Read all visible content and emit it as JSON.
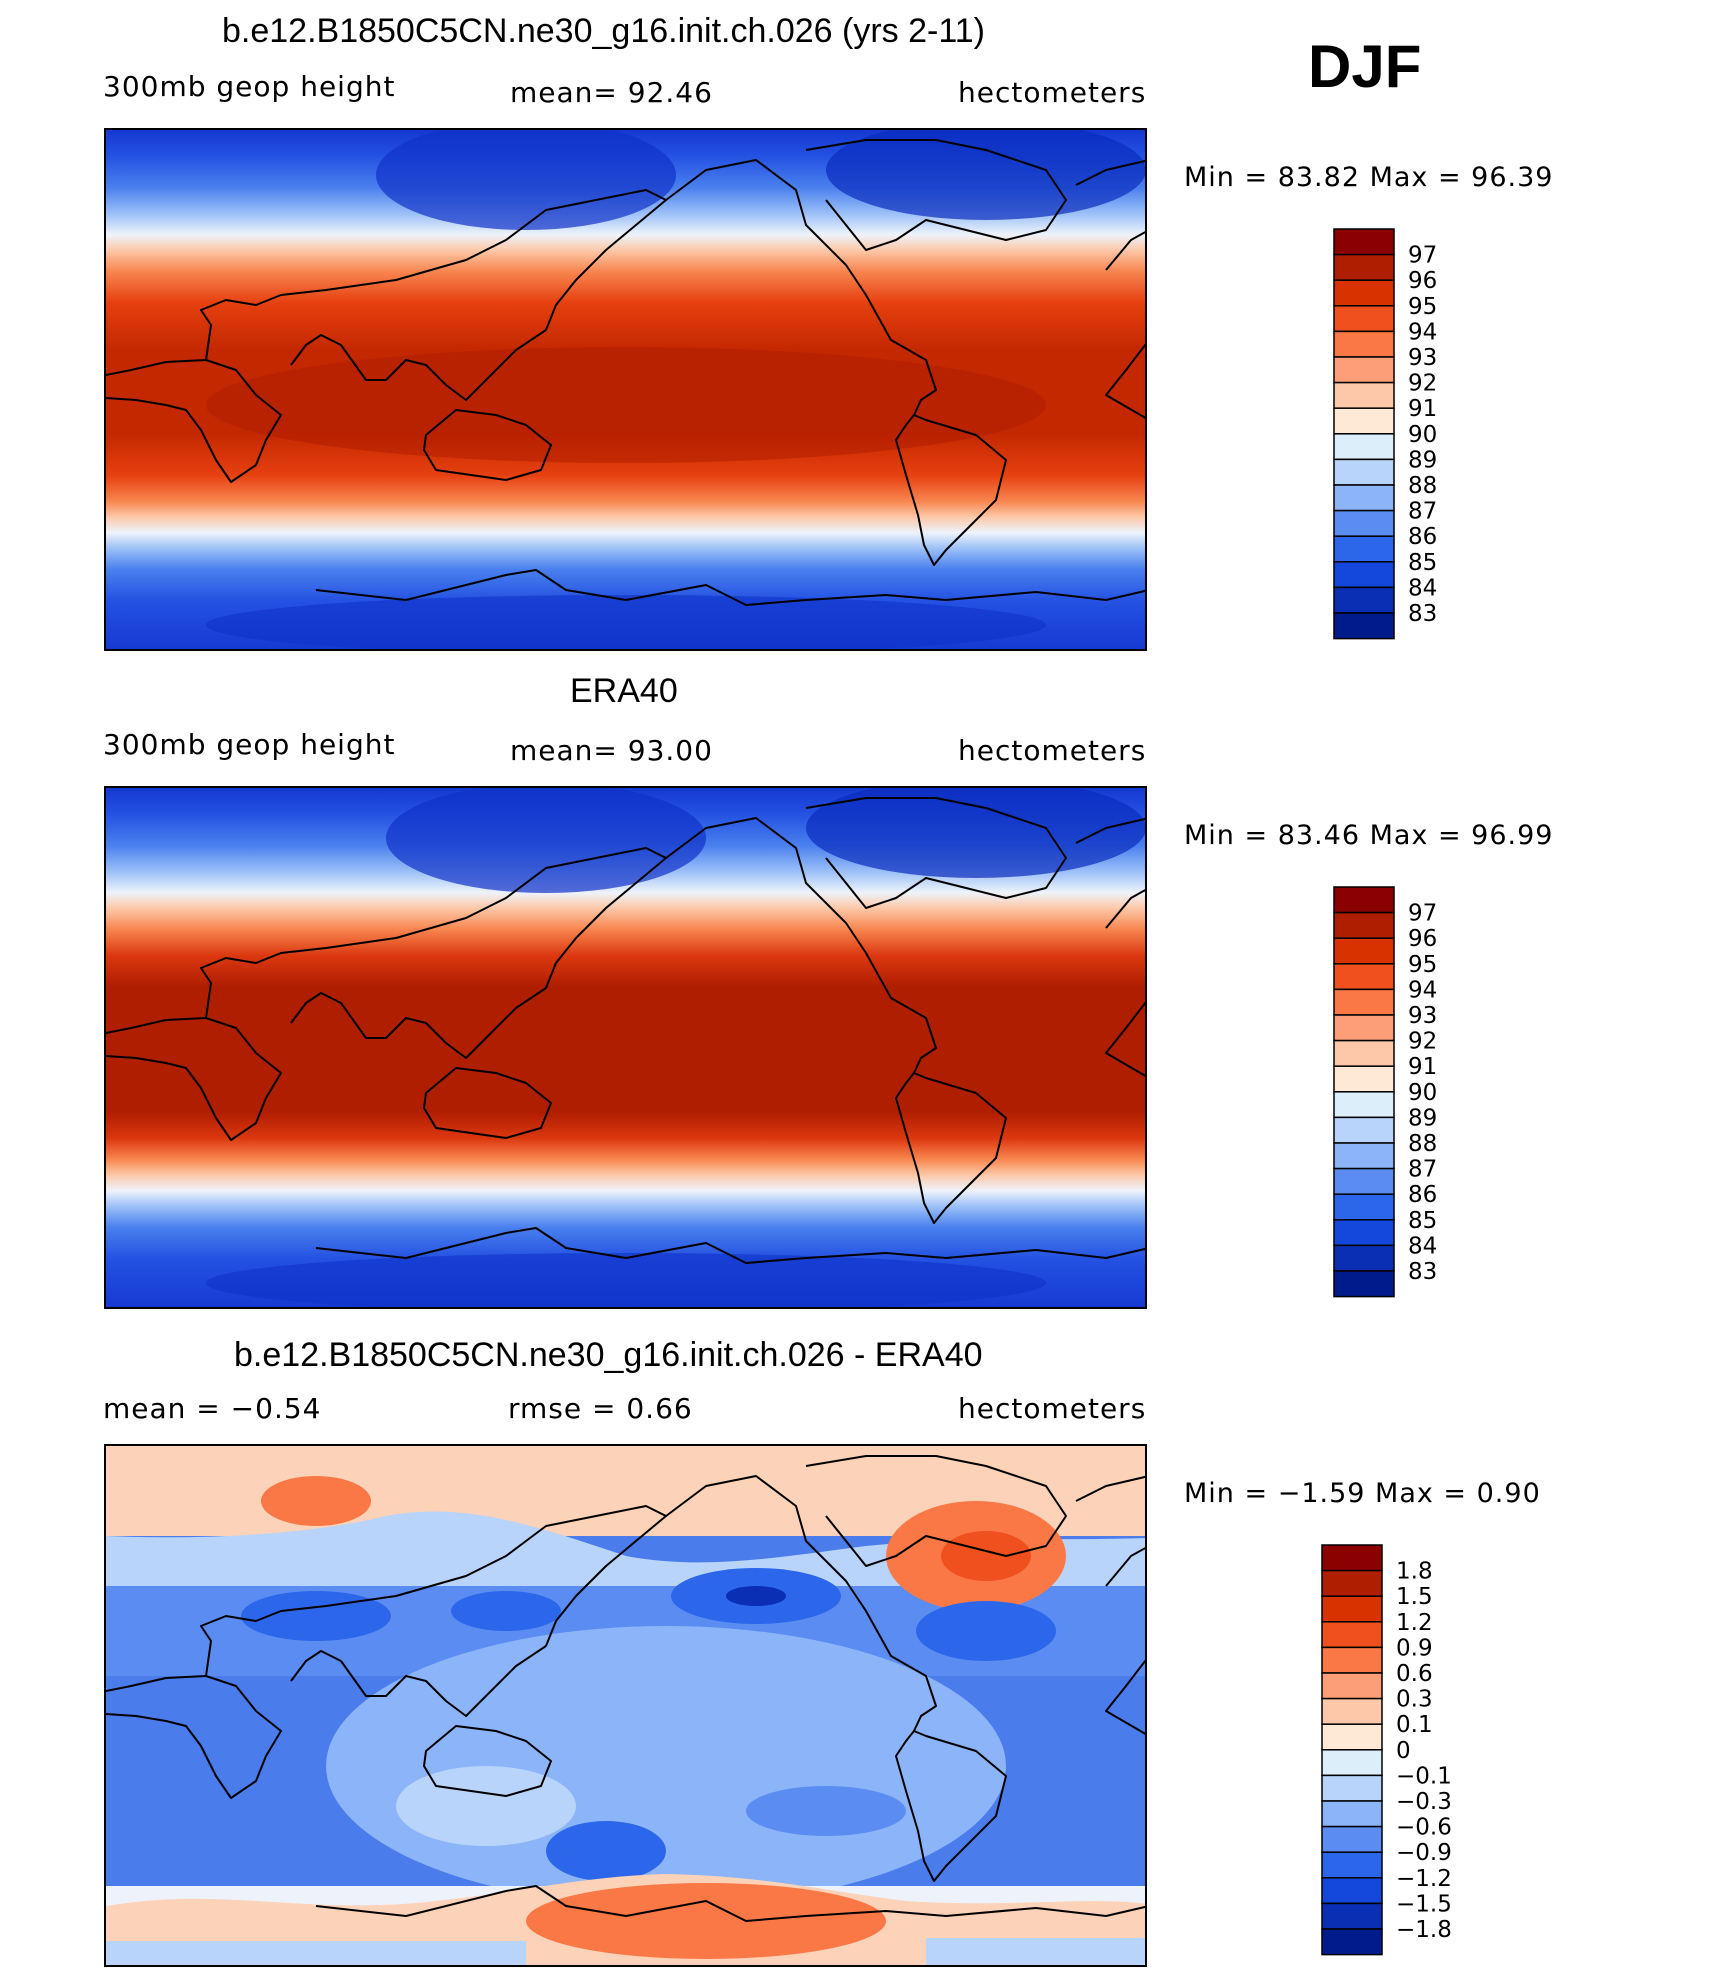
{
  "season": "DJF",
  "panels": [
    {
      "title": "b.e12.B1850C5CN.ne30_g16.init.ch.026 (yrs 2-11)",
      "left_label": "300mb  geop  height",
      "center_label": "mean=   92.46",
      "right_label": "hectometers",
      "minmax": "Min  =    83.82  Max  =    96.39",
      "legend_title": "",
      "levels": [
        "97",
        "96",
        "95",
        "94",
        "93",
        "92",
        "91",
        "90",
        "89",
        "88",
        "87",
        "86",
        "85",
        "84",
        "83"
      ],
      "colors": [
        "#8b0000",
        "#b01e00",
        "#d83200",
        "#f0501e",
        "#fa7846",
        "#fc9e78",
        "#fdc8aa",
        "#fee8d6",
        "#dceefa",
        "#b8d4fa",
        "#8cb4f8",
        "#5a8cf2",
        "#2c66ea",
        "#1448dc",
        "#0a2eb4",
        "#001c8c"
      ]
    },
    {
      "title": "ERA40",
      "left_label": "300mb  geop  height",
      "center_label": "mean=   93.00",
      "right_label": "hectometers",
      "minmax": "Min  =    83.46  Max  =    96.99",
      "legend_title": "",
      "levels": [
        "97",
        "96",
        "95",
        "94",
        "93",
        "92",
        "91",
        "90",
        "89",
        "88",
        "87",
        "86",
        "85",
        "84",
        "83"
      ],
      "colors": [
        "#8b0000",
        "#b01e00",
        "#d83200",
        "#f0501e",
        "#fa7846",
        "#fc9e78",
        "#fdc8aa",
        "#fee8d6",
        "#dceefa",
        "#b8d4fa",
        "#8cb4f8",
        "#5a8cf2",
        "#2c66ea",
        "#1448dc",
        "#0a2eb4",
        "#001c8c"
      ]
    },
    {
      "title": "b.e12.B1850C5CN.ne30_g16.init.ch.026 - ERA40",
      "left_label": "mean  =    −0.54",
      "center_label": "rmse  =     0.66",
      "right_label": "hectometers",
      "minmax": "Min  =    −1.59  Max  =     0.90",
      "legend_title": "",
      "levels": [
        "1.8",
        "1.5",
        "1.2",
        "0.9",
        "0.6",
        "0.3",
        "0.1",
        "0",
        "−0.1",
        "−0.3",
        "−0.6",
        "−0.9",
        "−1.2",
        "−1.5",
        "−1.8"
      ],
      "colors": [
        "#8b0000",
        "#b01e00",
        "#d83200",
        "#f0501e",
        "#fa7846",
        "#fc9e78",
        "#fdc8aa",
        "#fee8d6",
        "#dceefa",
        "#b8d4fa",
        "#8cb4f8",
        "#5a8cf2",
        "#2c66ea",
        "#1448dc",
        "#0a2eb4",
        "#001c8c"
      ]
    }
  ]
}
